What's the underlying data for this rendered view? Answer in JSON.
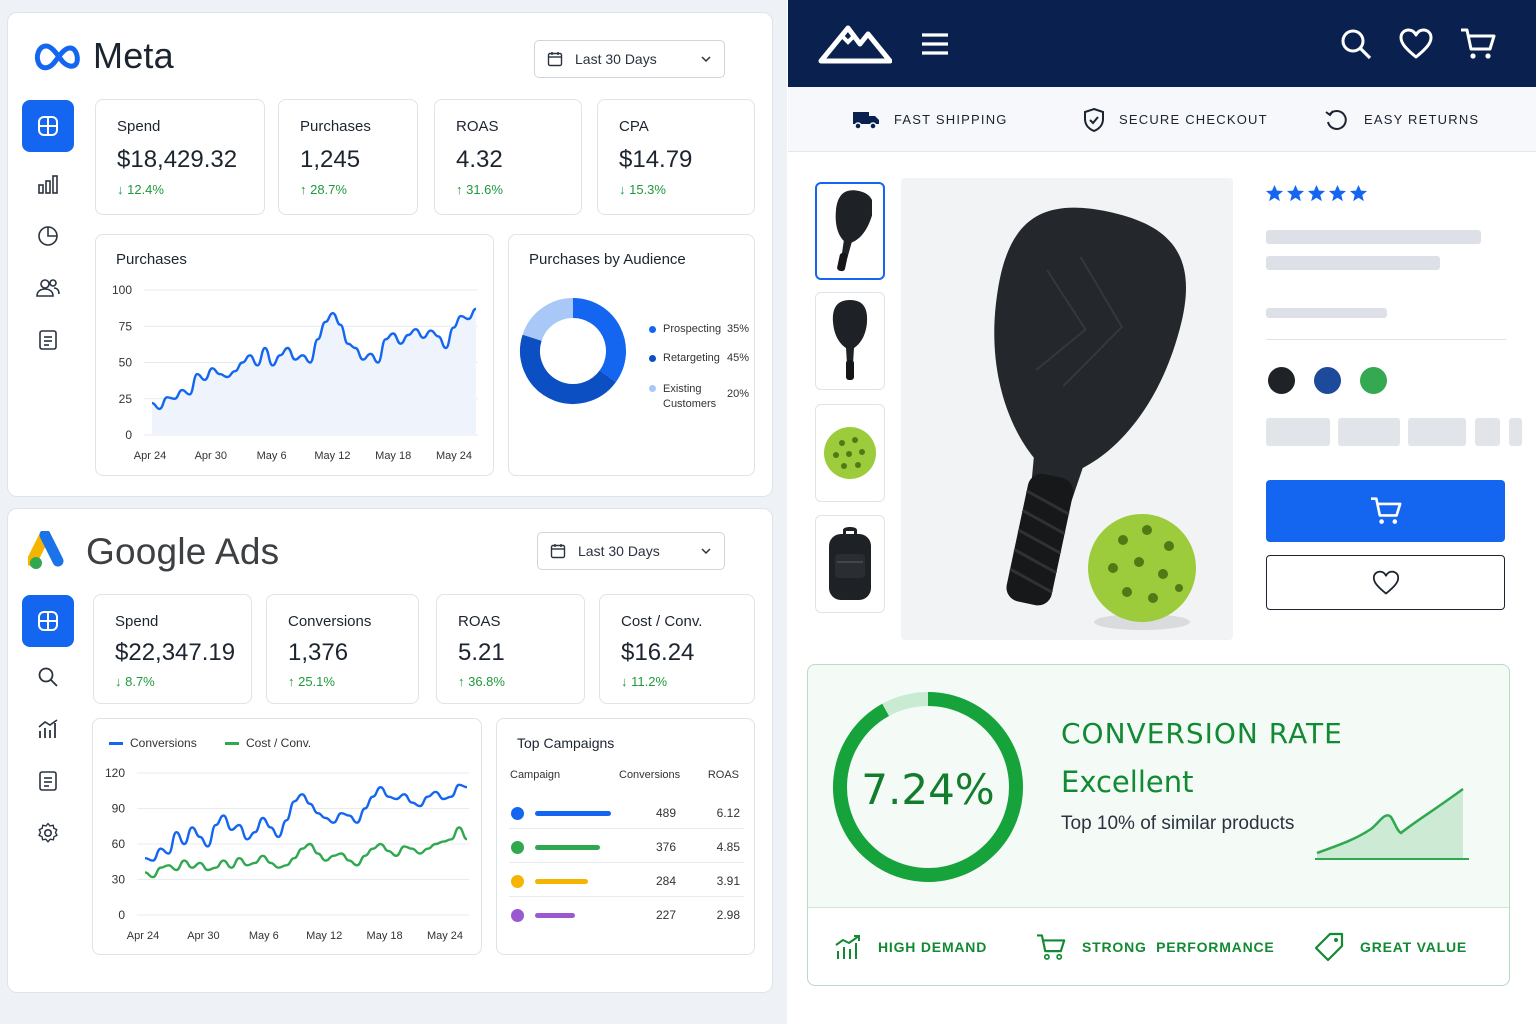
{
  "meta": {
    "brand": "Meta",
    "date_range": "Last 30 Days",
    "kpis": [
      {
        "label": "Spend",
        "value": "$18,429.32",
        "delta": "↓ 12.4%"
      },
      {
        "label": "Purchases",
        "value": "1,245",
        "delta": "↑ 28.7%"
      },
      {
        "label": "ROAS",
        "value": "4.32",
        "delta": "↑ 31.6%"
      },
      {
        "label": "CPA",
        "value": "$14.79",
        "delta": "↓ 15.3%"
      }
    ],
    "sidebar_icons": [
      "dashboard-icon",
      "bar-chart-icon",
      "pie-chart-icon",
      "users-icon",
      "document-icon"
    ],
    "purchases_chart": {
      "title": "Purchases",
      "type": "line",
      "yticks": [
        "100",
        "75",
        "50",
        "25",
        "0"
      ],
      "xticks": [
        "Apr 24",
        "Apr 30",
        "May 6",
        "May 12",
        "May 18",
        "May 24"
      ],
      "ylim": [
        0,
        100
      ],
      "values": [
        22,
        18,
        26,
        25,
        31,
        28,
        42,
        38,
        46,
        42,
        40,
        44,
        50,
        55,
        48,
        60,
        48,
        55,
        60,
        52,
        55,
        50,
        66,
        78,
        84,
        76,
        63,
        60,
        52,
        56,
        50,
        66,
        70,
        63,
        69,
        73,
        67,
        72,
        68,
        60,
        74,
        82,
        80,
        87
      ],
      "color": "#1466f0"
    },
    "audience_chart": {
      "title": "Purchases by Audience",
      "type": "pie",
      "slices": [
        {
          "name": "Prospecting",
          "pct_label": "35%",
          "value": 35,
          "color": "#1466f0"
        },
        {
          "name": "Retargeting",
          "pct_label": "45%",
          "value": 45,
          "color": "#0b4fc2"
        },
        {
          "name": "Existing Customers",
          "name_line1": "Existing",
          "name_line2": "Customers",
          "pct_label": "20%",
          "value": 20,
          "color": "#a9c8f7"
        }
      ]
    }
  },
  "google": {
    "brand": "Google Ads",
    "date_range": "Last 30 Days",
    "kpis": [
      {
        "label": "Spend",
        "value": "$22,347.19",
        "delta": "↓ 8.7%"
      },
      {
        "label": "Conversions",
        "value": "1,376",
        "delta": "↑ 25.1%"
      },
      {
        "label": "ROAS",
        "value": "5.21",
        "delta": "↑ 36.8%"
      },
      {
        "label": "Cost / Conv.",
        "value": "$16.24",
        "delta": "↓ 11.2%"
      }
    ],
    "sidebar_icons": [
      "dashboard-icon",
      "search-icon",
      "analytics-icon",
      "document-icon",
      "settings-icon"
    ],
    "line_chart": {
      "type": "line",
      "legend": [
        "Conversions",
        "Cost / Conv."
      ],
      "yticks": [
        "120",
        "90",
        "60",
        "30",
        "0"
      ],
      "xticks": [
        "Apr 24",
        "Apr 30",
        "May 6",
        "May 12",
        "May 18",
        "May 24"
      ],
      "ylim": [
        0,
        120
      ],
      "series": [
        {
          "name": "Conversions",
          "color": "#1466f0",
          "values": [
            48,
            46,
            56,
            52,
            70,
            60,
            74,
            66,
            58,
            76,
            84,
            72,
            76,
            64,
            70,
            82,
            74,
            66,
            80,
            96,
            102,
            94,
            86,
            82,
            78,
            86,
            84,
            78,
            90,
            100,
            108,
            100,
            98,
            102,
            95,
            92,
            100,
            104,
            98,
            100,
            110,
            108
          ]
        },
        {
          "name": "Cost / Conv.",
          "color": "#2fa84f",
          "values": [
            36,
            32,
            40,
            42,
            38,
            46,
            40,
            44,
            38,
            40,
            46,
            40,
            48,
            42,
            44,
            50,
            44,
            40,
            42,
            48,
            56,
            60,
            52,
            46,
            50,
            52,
            46,
            42,
            50,
            56,
            60,
            54,
            50,
            58,
            56,
            52,
            56,
            60,
            62,
            64,
            74,
            64
          ]
        }
      ]
    },
    "top_campaigns": {
      "title": "Top Campaigns",
      "headers": [
        "Campaign",
        "Conversions",
        "ROAS"
      ],
      "rows": [
        {
          "color": "#1466f0",
          "conversions": "489",
          "roas": "6.12",
          "bar": 1.0
        },
        {
          "color": "#2fa84f",
          "conversions": "376",
          "roas": "4.85",
          "bar": 0.86
        },
        {
          "color": "#f5b400",
          "conversions": "284",
          "roas": "3.91",
          "bar": 0.7
        },
        {
          "color": "#9b59d0",
          "conversions": "227",
          "roas": "2.98",
          "bar": 0.53
        }
      ]
    }
  },
  "store": {
    "nav_icons": [
      "mountain-logo-icon",
      "menu-icon",
      "search-icon",
      "heart-icon",
      "cart-icon"
    ],
    "trust": [
      {
        "icon": "truck-icon",
        "label": "FAST SHIPPING"
      },
      {
        "icon": "shield-check-icon",
        "label": "SECURE CHECKOUT"
      },
      {
        "icon": "return-arrow-icon",
        "label": "EASY RETURNS"
      }
    ],
    "rating": 5,
    "color_swatches": [
      "#1f2227",
      "#1e4a9c",
      "#35a852"
    ],
    "accent": "#1466f0",
    "conversion": {
      "rate": "7.24%",
      "rate_value": 7.24,
      "title": "CONVERSION RATE",
      "grade": "Excellent",
      "note": "Top 10% of similar products",
      "features": [
        {
          "icon": "bar-chart-up-icon",
          "label": "HIGH DEMAND"
        },
        {
          "icon": "cart-icon",
          "label": "STRONG  PERFORMANCE"
        },
        {
          "icon": "tag-icon",
          "label": "GREAT VALUE"
        }
      ]
    }
  }
}
